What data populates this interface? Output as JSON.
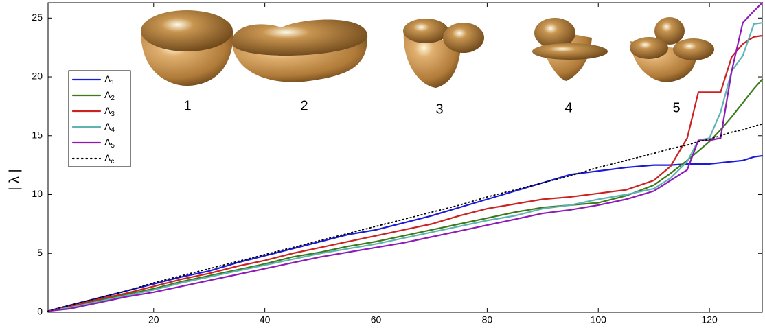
{
  "chart_data": {
    "type": "line",
    "y_label": "| λ |",
    "shape_labels": [
      "1",
      "2",
      "3",
      "4",
      "5"
    ],
    "x": [
      1,
      5,
      10,
      15,
      20,
      25,
      30,
      35,
      40,
      45,
      50,
      55,
      60,
      65,
      70,
      75,
      80,
      85,
      90,
      95,
      100,
      105,
      110,
      113,
      116,
      118,
      120,
      122,
      124,
      126,
      128,
      129.5
    ],
    "series": [
      {
        "name": "Λ1",
        "color": "#1a1adb",
        "style": "solid",
        "values": [
          0.1,
          0.6,
          1.2,
          1.8,
          2.4,
          3.0,
          3.5,
          4.2,
          4.8,
          5.4,
          6.0,
          6.6,
          7.0,
          7.6,
          8.2,
          8.9,
          9.6,
          10.3,
          11.0,
          11.7,
          12.0,
          12.3,
          12.5,
          12.5,
          12.6,
          12.6,
          12.6,
          12.7,
          12.8,
          12.9,
          13.2,
          13.3
        ]
      },
      {
        "name": "Λ2",
        "color": "#3d7a1a",
        "style": "solid",
        "values": [
          0.1,
          0.5,
          1.0,
          1.5,
          2.0,
          2.6,
          3.1,
          3.6,
          4.1,
          4.7,
          5.1,
          5.6,
          6.0,
          6.5,
          7.0,
          7.5,
          8.0,
          8.5,
          8.9,
          9.1,
          9.3,
          9.9,
          10.8,
          11.8,
          12.9,
          13.7,
          14.5,
          15.5,
          16.6,
          17.8,
          19.0,
          19.8
        ]
      },
      {
        "name": "Λ3",
        "color": "#cc2222",
        "style": "solid",
        "values": [
          0.1,
          0.5,
          1.1,
          1.6,
          2.2,
          2.8,
          3.3,
          3.9,
          4.4,
          5.0,
          5.5,
          6.0,
          6.5,
          7.0,
          7.5,
          8.2,
          8.8,
          9.2,
          9.6,
          9.8,
          10.1,
          10.4,
          11.2,
          12.4,
          14.8,
          18.7,
          18.7,
          18.7,
          21.7,
          22.8,
          23.4,
          23.5
        ]
      },
      {
        "name": "Λ4",
        "color": "#5fb3b3",
        "style": "solid",
        "values": [
          0.1,
          0.4,
          0.9,
          1.4,
          1.9,
          2.5,
          3.0,
          3.5,
          4.0,
          4.5,
          5.0,
          5.4,
          5.8,
          6.3,
          6.8,
          7.3,
          7.8,
          8.2,
          8.8,
          9.1,
          9.6,
          10.0,
          10.5,
          11.4,
          12.8,
          14.6,
          14.8,
          17.0,
          20.5,
          21.8,
          24.5,
          24.6
        ]
      },
      {
        "name": "Λ5",
        "color": "#8e1ab8",
        "style": "solid",
        "values": [
          0.1,
          0.3,
          0.8,
          1.3,
          1.7,
          2.2,
          2.7,
          3.2,
          3.7,
          4.2,
          4.7,
          5.1,
          5.5,
          5.9,
          6.4,
          6.9,
          7.4,
          7.9,
          8.4,
          8.7,
          9.1,
          9.6,
          10.3,
          11.2,
          12.1,
          14.6,
          14.6,
          14.8,
          20.5,
          24.6,
          25.6,
          26.3
        ]
      },
      {
        "name": "Λc",
        "color": "#000000",
        "style": "dotted",
        "values": [
          0.1,
          0.6,
          1.2,
          1.8,
          2.5,
          3.1,
          3.7,
          4.3,
          4.9,
          5.5,
          6.1,
          6.7,
          7.3,
          7.9,
          8.5,
          9.1,
          9.8,
          10.4,
          11.0,
          11.6,
          12.3,
          12.9,
          13.5,
          13.9,
          14.2,
          14.5,
          14.7,
          15.0,
          15.3,
          15.5,
          15.8,
          16.0
        ]
      }
    ],
    "xlim": [
      1,
      129.5
    ],
    "ylim": [
      0,
      26.3
    ],
    "xticks": [
      20,
      40,
      60,
      80,
      100,
      120
    ],
    "yticks": [
      0,
      5,
      10,
      15,
      20,
      25
    ],
    "grid": false,
    "legend": "left"
  }
}
